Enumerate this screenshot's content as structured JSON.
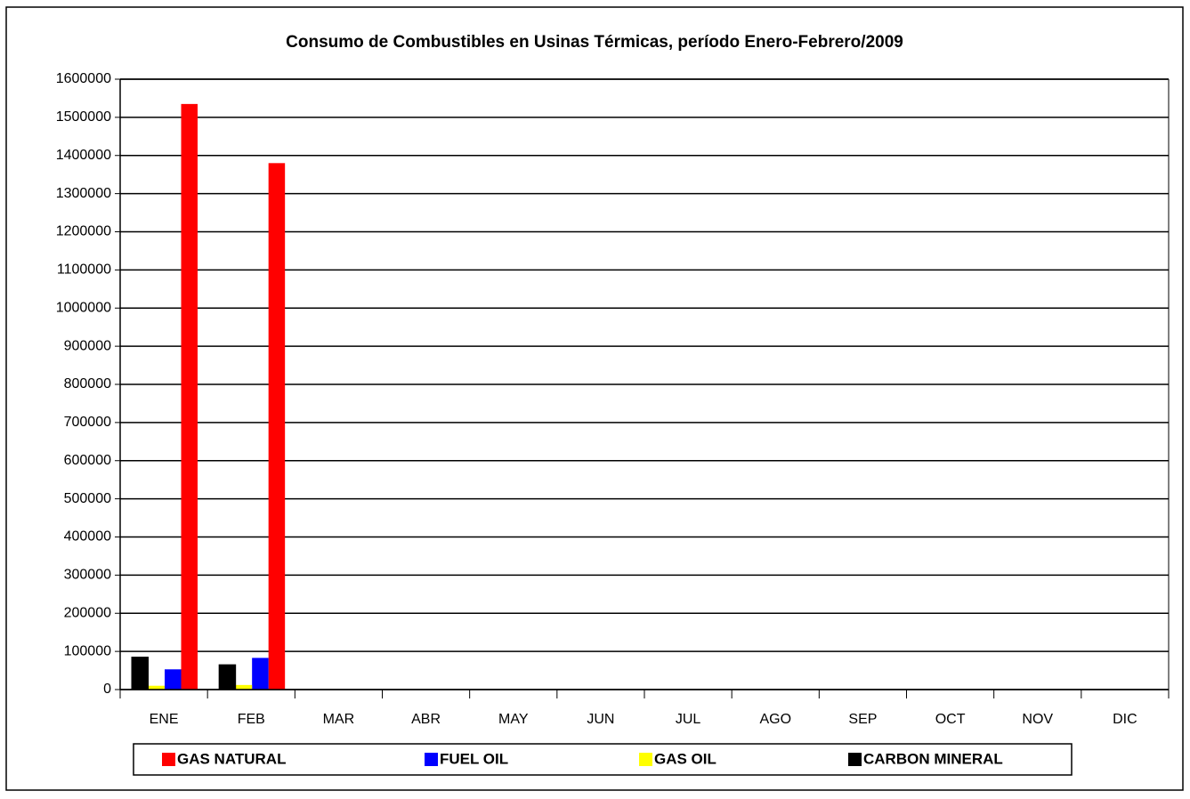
{
  "chart_data": {
    "type": "bar",
    "title": "Consumo de Combustibles en Usinas Térmicas, período Enero-Febrero/2009",
    "categories": [
      "ENE",
      "FEB",
      "MAR",
      "ABR",
      "MAY",
      "JUN",
      "JUL",
      "AGO",
      "SEP",
      "OCT",
      "NOV",
      "DIC"
    ],
    "series": [
      {
        "name": "GAS NATURAL",
        "color": "#ff0000",
        "values": [
          1535000,
          1380000,
          null,
          null,
          null,
          null,
          null,
          null,
          null,
          null,
          null,
          null
        ]
      },
      {
        "name": "FUEL OIL",
        "color": "#0000ff",
        "values": [
          53000,
          83000,
          null,
          null,
          null,
          null,
          null,
          null,
          null,
          null,
          null,
          null
        ]
      },
      {
        "name": "GAS OIL",
        "color": "#ffff00",
        "values": [
          10000,
          12000,
          null,
          null,
          null,
          null,
          null,
          null,
          null,
          null,
          null,
          null
        ]
      },
      {
        "name": "CARBON MINERAL",
        "color": "#000000",
        "values": [
          85000,
          65000,
          null,
          null,
          null,
          null,
          null,
          null,
          null,
          null,
          null,
          null
        ]
      }
    ],
    "ylim": [
      0,
      1600000
    ],
    "yticks": [
      0,
      100000,
      200000,
      300000,
      400000,
      500000,
      600000,
      700000,
      800000,
      900000,
      1000000,
      1100000,
      1200000,
      1300000,
      1400000,
      1500000,
      1600000
    ],
    "grid": true,
    "legend": "bottom"
  }
}
